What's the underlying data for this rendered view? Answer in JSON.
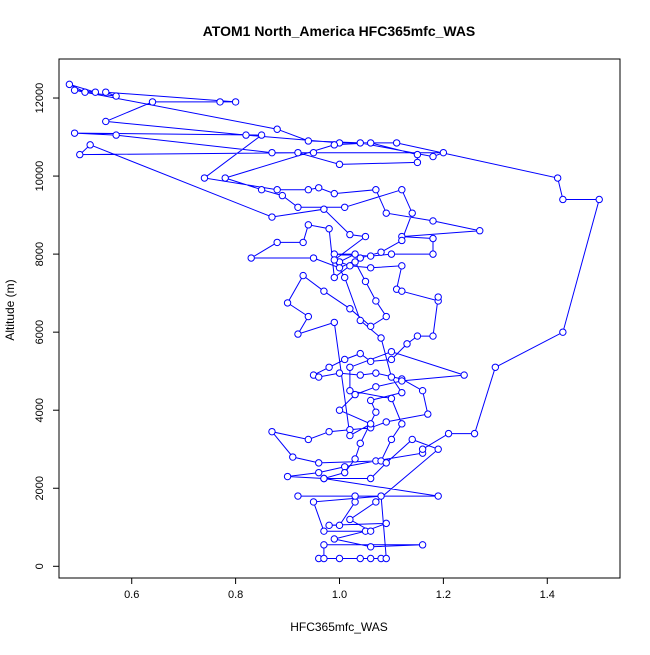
{
  "chart_data": {
    "type": "scatter",
    "title": "ATOM1 North_America HFC365mfc_WAS",
    "xlabel": "HFC365mfc_WAS",
    "ylabel": "Altitude (m)",
    "xlim": [
      0.46,
      1.54
    ],
    "ylim": [
      -300,
      13000
    ],
    "xticks": [
      "0.6",
      "0.8",
      "1.0",
      "1.2",
      "1.4"
    ],
    "yticks": [
      "0",
      "2000",
      "4000",
      "6000",
      "8000",
      "10000",
      "12000"
    ],
    "grid": false,
    "legend": "none",
    "series": [
      {
        "color": "#0000ff",
        "marker": "open-circle",
        "points": [
          [
            0.96,
            200
          ],
          [
            1.06,
            200
          ],
          [
            1.08,
            200
          ],
          [
            1.0,
            200
          ],
          [
            0.97,
            200
          ],
          [
            0.97,
            550
          ],
          [
            1.16,
            550
          ],
          [
            1.06,
            500
          ],
          [
            0.99,
            700
          ],
          [
            1.05,
            900
          ],
          [
            1.09,
            1100
          ],
          [
            0.98,
            1050
          ],
          [
            1.0,
            1050
          ],
          [
            1.03,
            1650
          ],
          [
            1.03,
            1800
          ],
          [
            0.92,
            1800
          ],
          [
            1.19,
            1800
          ],
          [
            0.97,
            2250
          ],
          [
            0.9,
            2300
          ],
          [
            0.96,
            2400
          ],
          [
            1.01,
            2550
          ],
          [
            1.07,
            2700
          ],
          [
            1.16,
            2900
          ],
          [
            1.16,
            3000
          ],
          [
            1.21,
            3400
          ],
          [
            1.26,
            3400
          ],
          [
            1.3,
            5100
          ],
          [
            1.43,
            6000
          ],
          [
            1.5,
            9400
          ],
          [
            1.43,
            9400
          ],
          [
            1.42,
            9950
          ],
          [
            1.11,
            10850
          ],
          [
            1.0,
            10850
          ],
          [
            0.82,
            11050
          ],
          [
            0.55,
            11400
          ],
          [
            0.64,
            11900
          ],
          [
            0.77,
            11900
          ],
          [
            0.8,
            11900
          ],
          [
            0.55,
            12150
          ],
          [
            0.57,
            12050
          ],
          [
            0.51,
            12150
          ],
          [
            0.48,
            12350
          ],
          [
            0.53,
            12150
          ],
          [
            0.49,
            12200
          ],
          [
            0.88,
            11200
          ],
          [
            0.94,
            10900
          ],
          [
            1.04,
            10850
          ],
          [
            1.18,
            10500
          ],
          [
            1.2,
            10600
          ],
          [
            0.95,
            10600
          ],
          [
            0.87,
            10600
          ],
          [
            0.57,
            11050
          ],
          [
            0.49,
            11100
          ],
          [
            0.85,
            11050
          ],
          [
            0.74,
            9950
          ],
          [
            0.88,
            9650
          ],
          [
            0.94,
            9650
          ],
          [
            0.96,
            9700
          ],
          [
            0.99,
            9550
          ],
          [
            1.07,
            9650
          ],
          [
            1.09,
            9050
          ],
          [
            1.18,
            8850
          ],
          [
            1.27,
            8600
          ],
          [
            1.12,
            8450
          ],
          [
            1.18,
            8400
          ],
          [
            1.18,
            8000
          ],
          [
            1.1,
            8000
          ],
          [
            1.06,
            7950
          ],
          [
            0.99,
            8000
          ],
          [
            1.03,
            8000
          ],
          [
            1.0,
            7800
          ],
          [
            1.02,
            7700
          ],
          [
            1.06,
            7650
          ],
          [
            1.12,
            7700
          ],
          [
            1.11,
            7100
          ],
          [
            1.12,
            7050
          ],
          [
            1.19,
            6800
          ],
          [
            1.19,
            6900
          ],
          [
            1.18,
            5900
          ],
          [
            1.15,
            5900
          ],
          [
            1.13,
            5700
          ],
          [
            1.1,
            5300
          ],
          [
            1.06,
            5250
          ],
          [
            1.04,
            5450
          ],
          [
            1.01,
            5300
          ],
          [
            0.98,
            5100
          ],
          [
            0.95,
            4900
          ],
          [
            0.96,
            4850
          ],
          [
            1.0,
            4950
          ],
          [
            1.04,
            4900
          ],
          [
            1.07,
            4950
          ],
          [
            1.12,
            4800
          ],
          [
            1.16,
            4500
          ],
          [
            1.17,
            3900
          ],
          [
            1.09,
            3700
          ],
          [
            1.06,
            3550
          ],
          [
            1.02,
            3500
          ],
          [
            0.98,
            3450
          ],
          [
            0.94,
            3250
          ],
          [
            0.87,
            3450
          ],
          [
            0.91,
            2800
          ],
          [
            0.96,
            2650
          ],
          [
            1.08,
            2700
          ],
          [
            1.1,
            3250
          ],
          [
            1.12,
            3650
          ],
          [
            1.1,
            4300
          ],
          [
            1.02,
            4500
          ],
          [
            1.02,
            5100
          ],
          [
            1.1,
            5500
          ],
          [
            1.24,
            4900
          ],
          [
            1.12,
            4750
          ],
          [
            1.07,
            4600
          ],
          [
            1.03,
            4400
          ],
          [
            1.0,
            4000
          ],
          [
            1.06,
            3650
          ],
          [
            1.02,
            3350
          ],
          [
            0.99,
            6250
          ],
          [
            0.92,
            5950
          ],
          [
            0.94,
            6400
          ],
          [
            0.9,
            6750
          ],
          [
            0.93,
            7450
          ],
          [
            0.97,
            7050
          ],
          [
            1.02,
            6600
          ],
          [
            1.06,
            6150
          ],
          [
            1.09,
            6400
          ],
          [
            1.07,
            6800
          ],
          [
            1.05,
            7300
          ],
          [
            1.03,
            7800
          ],
          [
            0.99,
            7400
          ],
          [
            0.98,
            8650
          ],
          [
            0.94,
            8750
          ],
          [
            0.93,
            8300
          ],
          [
            0.88,
            8300
          ],
          [
            0.83,
            7900
          ],
          [
            0.95,
            7900
          ],
          [
            1.0,
            7650
          ],
          [
            1.04,
            7900
          ],
          [
            1.08,
            8050
          ],
          [
            1.12,
            8350
          ],
          [
            1.14,
            9050
          ],
          [
            1.12,
            9650
          ],
          [
            1.01,
            9200
          ],
          [
            0.92,
            9200
          ],
          [
            0.89,
            9500
          ],
          [
            0.85,
            9650
          ],
          [
            0.78,
            9950
          ],
          [
            0.99,
            10800
          ],
          [
            1.06,
            10850
          ],
          [
            1.15,
            10550
          ],
          [
            1.15,
            10350
          ],
          [
            1.0,
            10300
          ],
          [
            0.92,
            10600
          ],
          [
            0.5,
            10550
          ],
          [
            0.52,
            10800
          ],
          [
            0.87,
            8950
          ],
          [
            0.97,
            9150
          ],
          [
            1.02,
            8500
          ],
          [
            1.05,
            8450
          ],
          [
            0.99,
            7850
          ],
          [
            1.01,
            7400
          ],
          [
            1.04,
            6300
          ],
          [
            1.08,
            5850
          ],
          [
            1.1,
            4850
          ],
          [
            1.12,
            4450
          ],
          [
            1.06,
            4250
          ],
          [
            1.07,
            3950
          ],
          [
            1.04,
            3150
          ],
          [
            1.03,
            2750
          ],
          [
            1.01,
            2400
          ],
          [
            0.97,
            2250
          ],
          [
            1.06,
            2250
          ],
          [
            1.09,
            2650
          ],
          [
            1.14,
            3250
          ],
          [
            1.19,
            3000
          ],
          [
            1.07,
            1650
          ],
          [
            1.02,
            1200
          ],
          [
            1.06,
            900
          ],
          [
            0.97,
            900
          ],
          [
            0.95,
            1650
          ],
          [
            1.08,
            1800
          ],
          [
            1.09,
            200
          ],
          [
            1.04,
            200
          ]
        ]
      }
    ]
  }
}
